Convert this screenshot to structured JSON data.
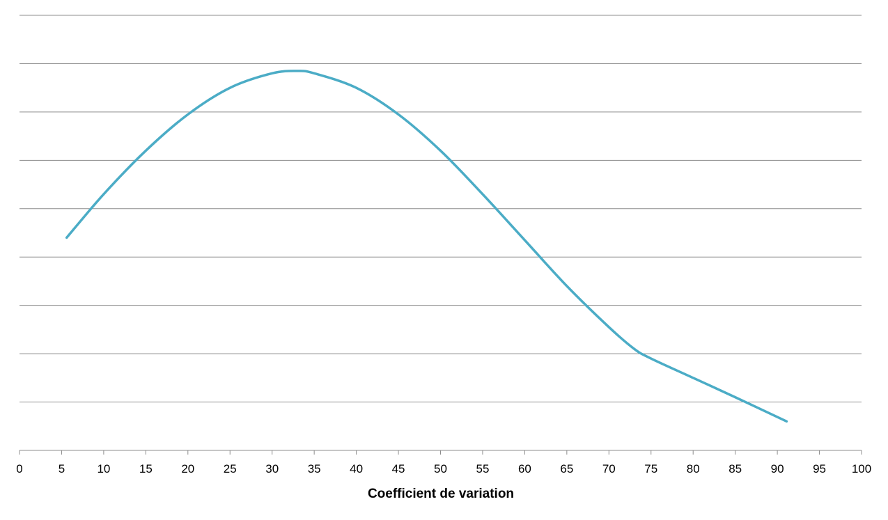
{
  "chart_data": {
    "type": "line",
    "xlabel": "Coefficient de variation",
    "ylabel": "",
    "title": "",
    "xlim": [
      0,
      100
    ],
    "ylim": [
      0,
      9
    ],
    "x_ticks": [
      "0",
      "5",
      "10",
      "15",
      "20",
      "25",
      "30",
      "35",
      "40",
      "45",
      "50",
      "55",
      "60",
      "65",
      "70",
      "75",
      "80",
      "85",
      "90",
      "95",
      "100"
    ],
    "y_tick_labels_shown": false,
    "grid": "horizontal",
    "series": [
      {
        "color": "#4BACC6",
        "x": [
          5.6,
          10,
          15,
          20,
          25,
          30,
          33,
          35,
          40,
          45,
          50,
          55,
          60,
          65,
          70,
          73,
          75,
          80,
          85,
          91.1
        ],
        "y": [
          4.4,
          5.3,
          6.2,
          6.95,
          7.5,
          7.8,
          7.85,
          7.8,
          7.5,
          6.95,
          6.2,
          5.3,
          4.35,
          3.4,
          2.55,
          2.1,
          1.9,
          1.5,
          1.1,
          0.6
        ]
      }
    ]
  }
}
